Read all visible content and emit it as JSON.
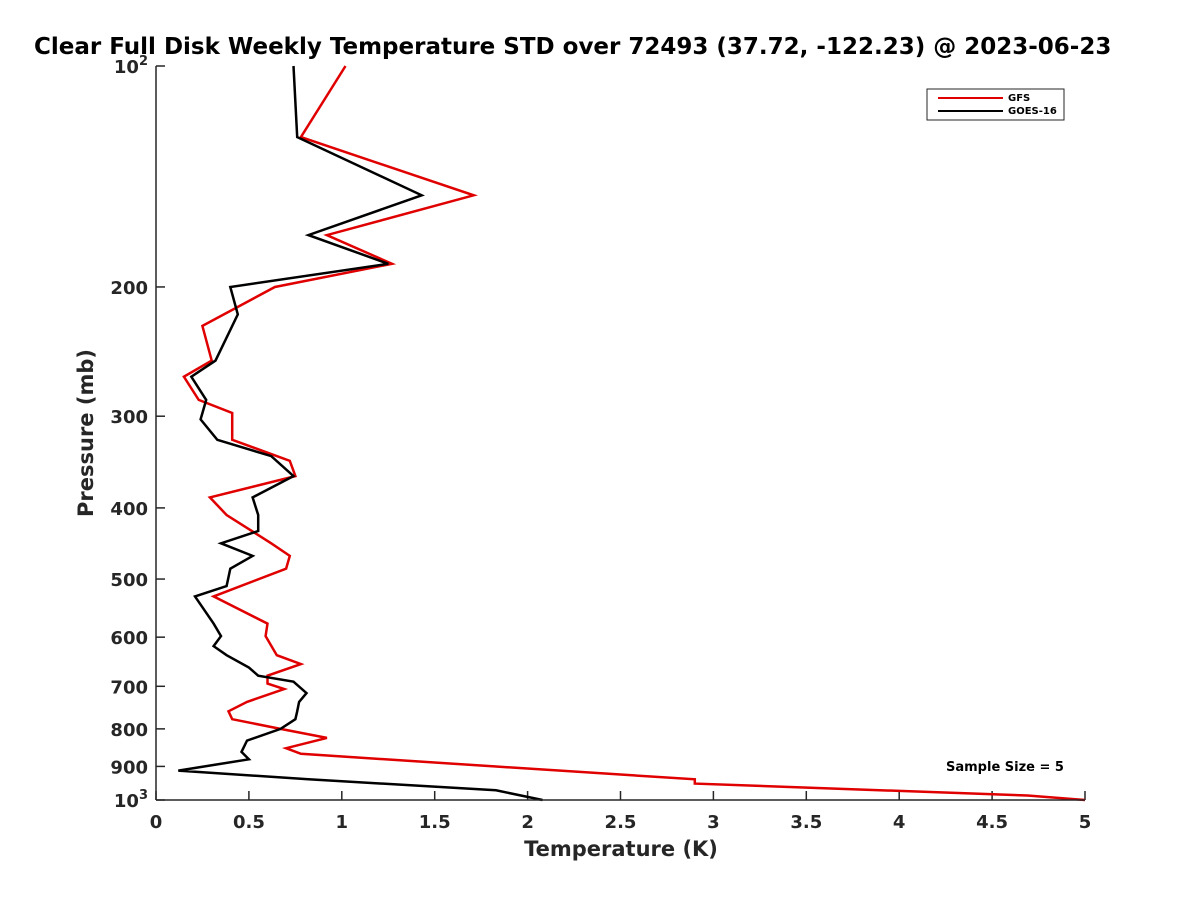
{
  "chart_data": {
    "type": "line",
    "title": "Clear Full Disk Weekly Temperature STD over 72493 (37.72, -122.23) @ 2023-06-23",
    "xlabel": "Temperature (K)",
    "ylabel": "Pressure (mb)",
    "xlim": [
      0,
      5
    ],
    "ylim": [
      100,
      1000
    ],
    "y_scale": "log",
    "y_reversed": true,
    "grid": false,
    "legend_position": "top-right",
    "annotation": "Sample Size = 5",
    "x_ticks": [
      "0",
      "0.5",
      "1",
      "1.5",
      "2",
      "2.5",
      "3",
      "3.5",
      "4",
      "4.5",
      "5"
    ],
    "y_ticks": [
      {
        "value": 100,
        "base": "10",
        "exp": "2"
      },
      {
        "value": 200,
        "label": "200"
      },
      {
        "value": 300,
        "label": "300"
      },
      {
        "value": 400,
        "label": "400"
      },
      {
        "value": 500,
        "label": "500"
      },
      {
        "value": 600,
        "label": "600"
      },
      {
        "value": 700,
        "label": "700"
      },
      {
        "value": 800,
        "label": "800"
      },
      {
        "value": 900,
        "label": "900"
      },
      {
        "value": 1000,
        "base": "10",
        "exp": "3"
      }
    ],
    "series": [
      {
        "name": "GFS",
        "color": "#e00000",
        "points": [
          [
            1.02,
            100
          ],
          [
            0.78,
            125
          ],
          [
            1.71,
            150
          ],
          [
            0.92,
            170
          ],
          [
            1.27,
            186
          ],
          [
            0.64,
            200
          ],
          [
            0.25,
            226
          ],
          [
            0.3,
            252
          ],
          [
            0.15,
            265
          ],
          [
            0.23,
            285
          ],
          [
            0.41,
            297
          ],
          [
            0.41,
            323
          ],
          [
            0.72,
            345
          ],
          [
            0.75,
            362
          ],
          [
            0.29,
            387
          ],
          [
            0.38,
            409
          ],
          [
            0.62,
            447
          ],
          [
            0.72,
            465
          ],
          [
            0.7,
            484
          ],
          [
            0.31,
            528
          ],
          [
            0.6,
            575
          ],
          [
            0.59,
            598
          ],
          [
            0.65,
            635
          ],
          [
            0.78,
            653
          ],
          [
            0.6,
            677
          ],
          [
            0.6,
            694
          ],
          [
            0.69,
            706
          ],
          [
            0.49,
            735
          ],
          [
            0.39,
            757
          ],
          [
            0.41,
            776
          ],
          [
            0.67,
            800
          ],
          [
            0.92,
            823
          ],
          [
            0.7,
            850
          ],
          [
            0.78,
            865
          ],
          [
            1.82,
            900
          ],
          [
            2.9,
            937
          ],
          [
            2.9,
            950
          ],
          [
            4.69,
            986
          ],
          [
            5.0,
            1000
          ]
        ]
      },
      {
        "name": "GOES-16",
        "color": "#000000",
        "points": [
          [
            0.74,
            100
          ],
          [
            0.76,
            125
          ],
          [
            1.43,
            150
          ],
          [
            0.82,
            170
          ],
          [
            1.25,
            186
          ],
          [
            0.4,
            200
          ],
          [
            0.44,
            218
          ],
          [
            0.32,
            252
          ],
          [
            0.19,
            265
          ],
          [
            0.27,
            285
          ],
          [
            0.24,
            303
          ],
          [
            0.33,
            323
          ],
          [
            0.62,
            340
          ],
          [
            0.74,
            362
          ],
          [
            0.52,
            387
          ],
          [
            0.55,
            409
          ],
          [
            0.55,
            430
          ],
          [
            0.35,
            447
          ],
          [
            0.52,
            465
          ],
          [
            0.4,
            484
          ],
          [
            0.38,
            511
          ],
          [
            0.21,
            528
          ],
          [
            0.31,
            575
          ],
          [
            0.35,
            598
          ],
          [
            0.31,
            617
          ],
          [
            0.38,
            635
          ],
          [
            0.5,
            660
          ],
          [
            0.55,
            677
          ],
          [
            0.74,
            690
          ],
          [
            0.81,
            715
          ],
          [
            0.77,
            735
          ],
          [
            0.76,
            757
          ],
          [
            0.75,
            776
          ],
          [
            0.67,
            800
          ],
          [
            0.49,
            830
          ],
          [
            0.46,
            860
          ],
          [
            0.5,
            880
          ],
          [
            0.12,
            912
          ],
          [
            0.82,
            937
          ],
          [
            1.83,
            970
          ],
          [
            2.08,
            1000
          ]
        ]
      }
    ]
  }
}
